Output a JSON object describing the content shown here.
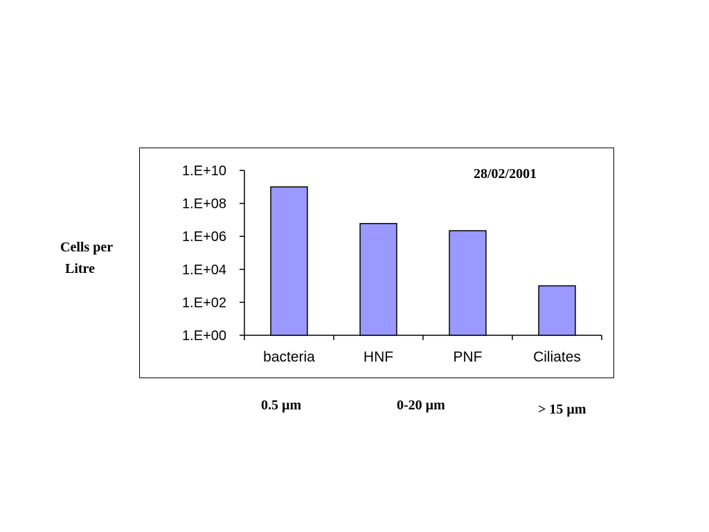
{
  "chart_data": {
    "type": "bar",
    "date": "28/02/2001",
    "categories": [
      "bacteria",
      "HNF",
      "PNF",
      "Ciliates"
    ],
    "values": [
      1000000000,
      6000000,
      2200000,
      1000
    ],
    "ylabel_line1": "Cells per",
    "ylabel_line2": "Litre",
    "yscale": "log",
    "ylim": [
      1,
      10000000000
    ],
    "yticks": [
      {
        "value": 1,
        "label": "1.E+00"
      },
      {
        "value": 100,
        "label": "1.E+02"
      },
      {
        "value": 10000,
        "label": "1.E+04"
      },
      {
        "value": 1000000,
        "label": "1.E+06"
      },
      {
        "value": 100000000,
        "label": "1.E+08"
      },
      {
        "value": 10000000000,
        "label": "1.E+10"
      }
    ],
    "size_classes": [
      "0.5 µm",
      "0-20 µm",
      "> 15 µm"
    ],
    "bar_color": "#9999ff",
    "bar_outline": "#000000",
    "grid": false,
    "legend": "none"
  }
}
